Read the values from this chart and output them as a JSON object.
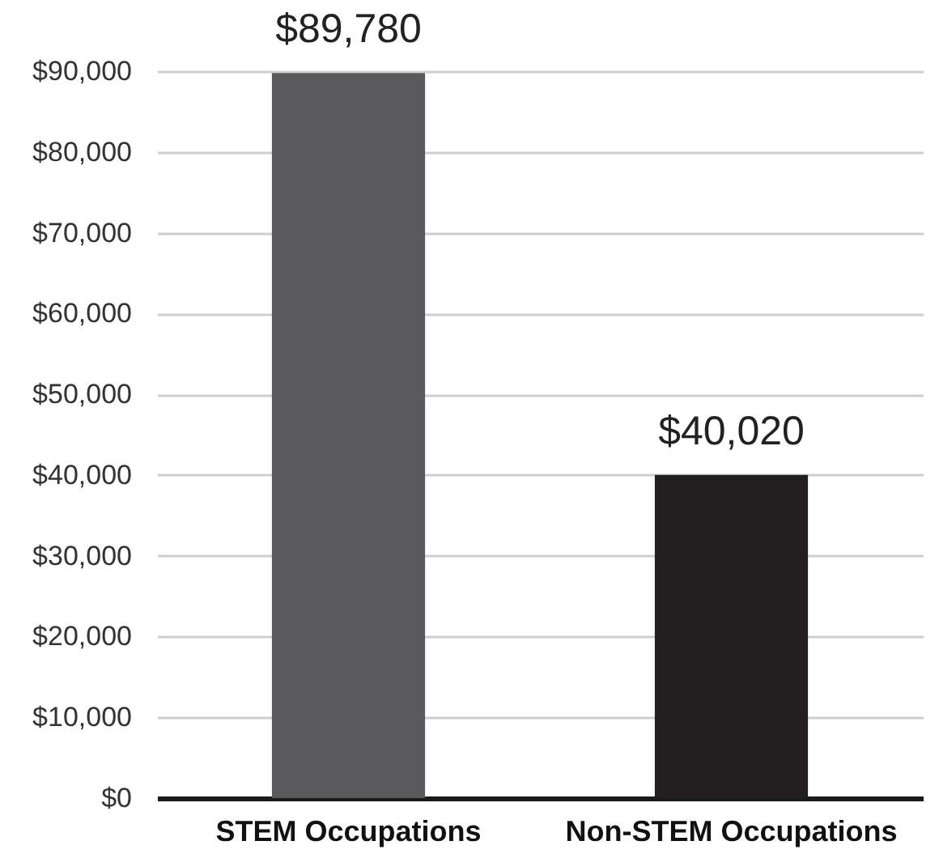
{
  "chart_data": {
    "type": "bar",
    "categories": [
      "STEM Occupations",
      "Non-STEM Occupations"
    ],
    "values": [
      89780,
      40020
    ],
    "colors": [
      "#5a5a5c",
      "#231f20"
    ],
    "value_labels": [
      "$89,780",
      "$40,020"
    ],
    "ylim": [
      0,
      90000
    ],
    "yticks": [
      {
        "value": 0,
        "label": "$0"
      },
      {
        "value": 10000,
        "label": "$10,000"
      },
      {
        "value": 20000,
        "label": "$20,000"
      },
      {
        "value": 30000,
        "label": "$30,000"
      },
      {
        "value": 40000,
        "label": "$40,000"
      },
      {
        "value": 50000,
        "label": "$50,000"
      },
      {
        "value": 60000,
        "label": "$60,000"
      },
      {
        "value": 70000,
        "label": "$70,000"
      },
      {
        "value": 80000,
        "label": "$80,000"
      },
      {
        "value": 90000,
        "label": "$90,000"
      }
    ],
    "grid": "y"
  }
}
